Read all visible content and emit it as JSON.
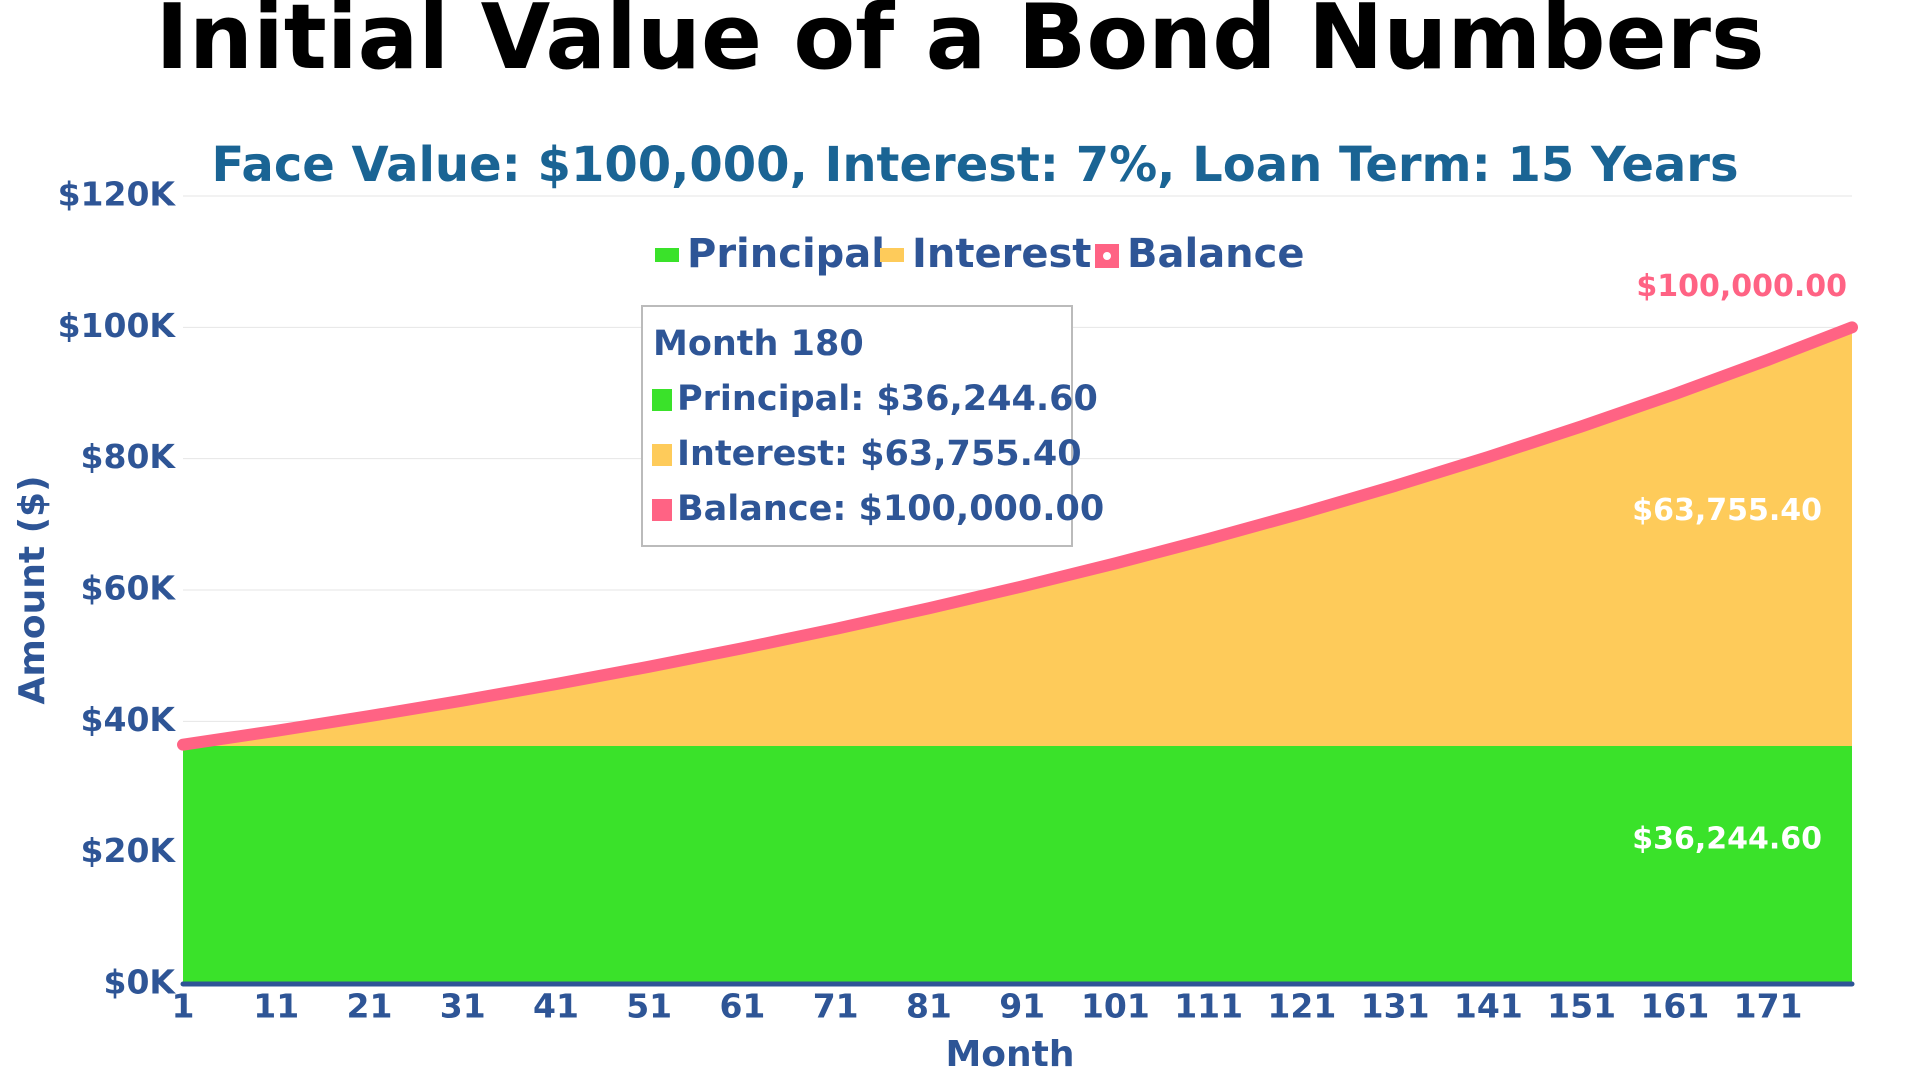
{
  "chart_data": {
    "type": "area",
    "title": "Initial Value of a Bond Numbers",
    "subtitle": "Face Value: $100,000, Interest: 7%, Loan Term: 15 Years",
    "x_label": "Month",
    "y_label": "Amount ($)",
    "x": [
      1,
      11,
      21,
      31,
      41,
      51,
      61,
      71,
      81,
      91,
      101,
      111,
      121,
      131,
      141,
      151,
      161,
      171,
      180
    ],
    "series": [
      {
        "name": "Principal",
        "color": "#3ae22a",
        "stack": true,
        "values": [
          36244.6,
          36244.6,
          36244.6,
          36244.6,
          36244.6,
          36244.6,
          36244.6,
          36244.6,
          36244.6,
          36244.6,
          36244.6,
          36244.6,
          36244.6,
          36244.6,
          36244.6,
          36244.6,
          36244.6,
          36244.6,
          36244.6
        ],
        "end_label": "$36,244.60"
      },
      {
        "name": "Interest",
        "color": "#fecb5a",
        "stack": true,
        "values": [
          205,
          2319,
          4556,
          6922,
          9426,
          12075,
          14877,
          17843,
          20980,
          24299,
          27811,
          31526,
          35457,
          39616,
          44016,
          48672,
          53598,
          58809,
          63755.4
        ],
        "end_label": "$63,755.40"
      },
      {
        "name": "Balance",
        "color": "#ff6384",
        "stack": false,
        "values": [
          36449.5,
          38563.5,
          40800.4,
          43167,
          45671,
          48320,
          51122,
          54088,
          57225,
          60544,
          64056,
          67771,
          71702,
          75861,
          80261,
          84917,
          89843,
          95054,
          100000
        ],
        "end_label": "$100,000.00"
      }
    ],
    "xlim": [
      1,
      180
    ],
    "xticks": [
      1,
      11,
      21,
      31,
      41,
      51,
      61,
      71,
      81,
      91,
      101,
      111,
      121,
      131,
      141,
      151,
      161,
      171
    ],
    "ylim": [
      0,
      120000
    ],
    "yticks": [
      {
        "value": 0,
        "label": "$0K"
      },
      {
        "value": 20000,
        "label": "$20K"
      },
      {
        "value": 40000,
        "label": "$40K"
      },
      {
        "value": 60000,
        "label": "$60K"
      },
      {
        "value": 80000,
        "label": "$80K"
      },
      {
        "value": 100000,
        "label": "$100K"
      },
      {
        "value": 120000,
        "label": "$120K"
      }
    ],
    "grid": true,
    "legend": "top",
    "tooltip": {
      "title": "Month 180",
      "lines": [
        "Principal: $36,244.60",
        "Interest: $63,755.40",
        "Balance: $100,000.00"
      ]
    }
  }
}
